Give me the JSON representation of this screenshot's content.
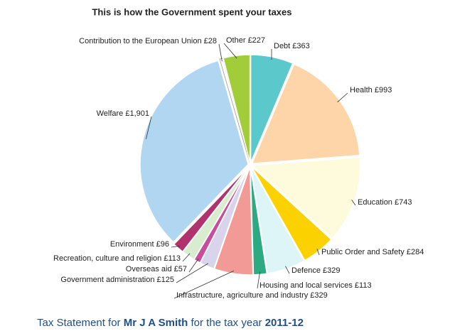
{
  "chart_data": {
    "type": "pie",
    "title": "This is how the Government spent your taxes",
    "values": [
      363,
      993,
      743,
      284,
      329,
      113,
      329,
      125,
      57,
      113,
      96,
      1901,
      28,
      227
    ],
    "value_labels": [
      "Debt £363",
      "Health £993",
      "Education £743",
      "Public Order and Safety £284",
      "Defence £329",
      "Housing and local services £113",
      "Infrastructure, agriculture and industry £329",
      "Government administration £125",
      "Overseas aid £57",
      "Recreation, culture and religion £113",
      "Environment £96",
      "Welfare £1,901",
      "Contribution to the European Union £28",
      "Other £227"
    ],
    "colors": [
      "#5bc8cc",
      "#fdd5a8",
      "#fefadc",
      "#fcd100",
      "#def5f8",
      "#2eaa82",
      "#f29a96",
      "#d8d4ec",
      "#c84d9a",
      "#d8ecd0",
      "#b0336e",
      "#b0d6f2",
      "#ffffff",
      "#a2cc3a"
    ]
  },
  "footer": {
    "prefix": "Tax Statement for ",
    "name": "Mr J A Smith",
    "middle": " for the tax year ",
    "year": "2011-12"
  }
}
